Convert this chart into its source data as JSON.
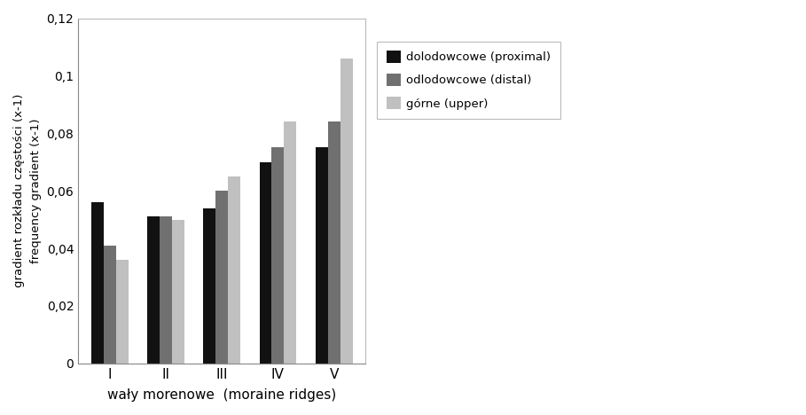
{
  "categories": [
    "I",
    "II",
    "III",
    "IV",
    "V"
  ],
  "proximal": [
    0.056,
    0.051,
    0.054,
    0.07,
    0.075
  ],
  "distal": [
    0.041,
    0.051,
    0.06,
    0.075,
    0.084
  ],
  "upper": [
    0.036,
    0.05,
    0.065,
    0.084,
    0.106
  ],
  "bar_colors": [
    "#111111",
    "#707070",
    "#c0c0c0"
  ],
  "legend_labels": [
    "dolodowcowe (proximal)",
    "odlodowcowe (distal)",
    "górne (upper)"
  ],
  "ylabel_line1": "gradient rozkładu częstości (x-1)",
  "ylabel_line2": "frequency gradient (x-1)",
  "xlabel": "wały morenowe  (moraine ridges)",
  "ylim": [
    0,
    0.12
  ],
  "yticks": [
    0,
    0.02,
    0.04,
    0.06,
    0.08,
    0.1,
    0.12
  ],
  "background_color": "#ffffff",
  "plot_bg_color": "#ffffff"
}
